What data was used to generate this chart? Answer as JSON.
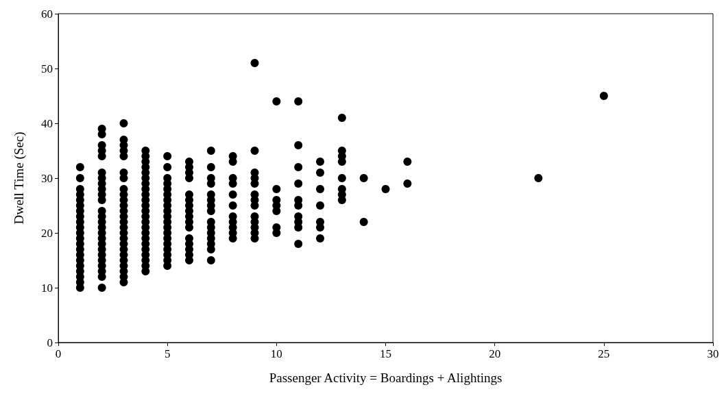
{
  "chart_data": {
    "type": "scatter",
    "xlabel": "Passenger Activity = Boardings + Alightings",
    "ylabel": "Dwell Time (Sec)",
    "color": "#000000",
    "marker": "circle",
    "xlim": [
      0,
      30
    ],
    "xticks": [
      0,
      5,
      10,
      15,
      20,
      25,
      30
    ],
    "ylim": [
      0,
      60
    ],
    "yticks": [
      0,
      10,
      20,
      30,
      40,
      50,
      60
    ],
    "x": [
      1,
      1,
      1,
      1,
      1,
      1,
      1,
      1,
      1,
      1,
      1,
      1,
      1,
      1,
      1,
      1,
      1,
      1,
      1,
      1,
      1,
      2,
      2,
      2,
      2,
      2,
      2,
      2,
      2,
      2,
      2,
      2,
      2,
      2,
      2,
      2,
      2,
      2,
      2,
      2,
      2,
      2,
      2,
      2,
      2,
      2,
      3,
      3,
      3,
      3,
      3,
      3,
      3,
      3,
      3,
      3,
      3,
      3,
      3,
      3,
      3,
      3,
      3,
      3,
      3,
      3,
      3,
      3,
      3,
      3,
      3,
      4,
      4,
      4,
      4,
      4,
      4,
      4,
      4,
      4,
      4,
      4,
      4,
      4,
      4,
      4,
      4,
      4,
      4,
      4,
      4,
      4,
      4,
      4,
      5,
      5,
      5,
      5,
      5,
      5,
      5,
      5,
      5,
      5,
      5,
      5,
      5,
      5,
      5,
      5,
      5,
      5,
      5,
      6,
      6,
      6,
      6,
      6,
      6,
      6,
      6,
      6,
      6,
      6,
      6,
      6,
      6,
      6,
      6,
      7,
      7,
      7,
      7,
      7,
      7,
      7,
      7,
      7,
      7,
      7,
      7,
      7,
      7,
      7,
      8,
      8,
      8,
      8,
      8,
      8,
      8,
      8,
      8,
      8,
      8,
      9,
      9,
      9,
      9,
      9,
      9,
      9,
      9,
      9,
      9,
      9,
      9,
      9,
      10,
      10,
      10,
      10,
      10,
      10,
      10,
      11,
      11,
      11,
      11,
      11,
      11,
      11,
      11,
      11,
      11,
      12,
      12,
      12,
      12,
      12,
      12,
      12,
      13,
      13,
      13,
      13,
      13,
      13,
      13,
      13,
      14,
      14,
      15,
      16,
      16,
      22,
      25
    ],
    "values": [
      10,
      11,
      12,
      13,
      14,
      15,
      16,
      17,
      18,
      19,
      20,
      21,
      22,
      23,
      24,
      25,
      26,
      27,
      28,
      30,
      32,
      10,
      12,
      13,
      14,
      15,
      16,
      17,
      18,
      19,
      20,
      21,
      22,
      23,
      24,
      26,
      27,
      28,
      29,
      30,
      31,
      34,
      35,
      36,
      38,
      39,
      11,
      12,
      13,
      14,
      15,
      16,
      17,
      18,
      19,
      20,
      21,
      22,
      23,
      24,
      25,
      26,
      27,
      28,
      30,
      31,
      34,
      35,
      36,
      37,
      40,
      13,
      14,
      15,
      16,
      17,
      18,
      19,
      20,
      21,
      22,
      23,
      24,
      25,
      26,
      27,
      28,
      29,
      30,
      31,
      32,
      33,
      34,
      35,
      14,
      15,
      16,
      17,
      18,
      19,
      20,
      21,
      22,
      23,
      24,
      25,
      26,
      27,
      28,
      29,
      30,
      32,
      34,
      15,
      16,
      17,
      18,
      19,
      21,
      22,
      23,
      24,
      25,
      26,
      27,
      30,
      31,
      32,
      33,
      15,
      17,
      18,
      19,
      20,
      21,
      22,
      24,
      25,
      26,
      27,
      29,
      30,
      32,
      35,
      19,
      20,
      21,
      22,
      23,
      25,
      27,
      29,
      30,
      33,
      34,
      19,
      20,
      21,
      22,
      23,
      25,
      26,
      27,
      29,
      30,
      31,
      35,
      51,
      20,
      21,
      24,
      25,
      26,
      28,
      44,
      18,
      21,
      22,
      23,
      25,
      26,
      29,
      32,
      36,
      44,
      19,
      21,
      22,
      25,
      28,
      31,
      33,
      26,
      27,
      28,
      30,
      33,
      34,
      35,
      41,
      22,
      30,
      28,
      29,
      33,
      30,
      45
    ]
  }
}
